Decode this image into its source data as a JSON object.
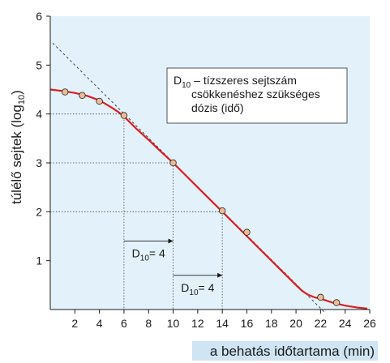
{
  "chart_data": {
    "type": "line",
    "xlabel": "a behatás időtartama (min)",
    "ylabel_main": "túlélő sejtek (log",
    "ylabel_sub": "10",
    "ylabel_end": ")",
    "xlim": [
      0,
      26
    ],
    "ylim": [
      0,
      6
    ],
    "x_ticks": [
      2,
      4,
      6,
      8,
      10,
      12,
      14,
      16,
      18,
      20,
      22,
      24,
      26
    ],
    "y_ticks": [
      1,
      2,
      3,
      4,
      5,
      6
    ],
    "grid": false,
    "colors": {
      "plot_background": "#e3f2fa",
      "curve": "#d81f26",
      "marker_fill": "#eebd93",
      "xlabel_band": "#cfe5f3"
    },
    "series": [
      {
        "x": [
          0.0,
          1.0,
          2.0,
          3.0,
          4.0,
          5.0,
          5.6,
          6.0,
          7.0,
          8.0,
          9.0,
          10.0,
          11.0,
          12.0,
          13.0,
          14.0,
          15.0,
          16.0,
          17.0,
          18.0,
          19.0,
          20.0,
          20.5,
          21.0,
          21.5,
          22.0,
          23.0,
          24.0,
          25.0,
          25.8
        ],
        "y": [
          4.5,
          4.47,
          4.43,
          4.37,
          4.28,
          4.13,
          4.03,
          3.95,
          3.7,
          3.47,
          3.23,
          3.0,
          2.75,
          2.5,
          2.25,
          2.0,
          1.75,
          1.5,
          1.25,
          1.0,
          0.75,
          0.5,
          0.38,
          0.3,
          0.25,
          0.22,
          0.14,
          0.08,
          0.04,
          0.02
        ]
      }
    ],
    "points": {
      "x": [
        1.2,
        2.6,
        4.0,
        6.0,
        10.0,
        14.0,
        16.0,
        22.0,
        23.3
      ],
      "y": [
        4.45,
        4.38,
        4.26,
        3.97,
        3.0,
        2.02,
        1.58,
        0.25,
        0.14
      ]
    },
    "extrapolation_line": {
      "x": [
        0.2,
        22.3
      ],
      "y": [
        5.45,
        -0.05
      ]
    },
    "guides": [
      {
        "x": 6,
        "y": 4
      },
      {
        "x": 10,
        "y": 3
      },
      {
        "x": 14,
        "y": 2
      }
    ],
    "intervals": [
      {
        "x1": 6,
        "x2": 10,
        "y": 1.4,
        "label_main": "D",
        "label_sub": "10",
        "label_end": "= 4"
      },
      {
        "x1": 10,
        "x2": 14,
        "y": 0.7,
        "label_main": "D",
        "label_sub": "10",
        "label_end": "= 4"
      }
    ],
    "legend": {
      "line1_main": "D",
      "line1_sub": "10",
      "line1_rest": " – tízszeres sejtszám",
      "line2": "csökkenéshez szükséges",
      "line3": "dózis (idő)"
    }
  }
}
